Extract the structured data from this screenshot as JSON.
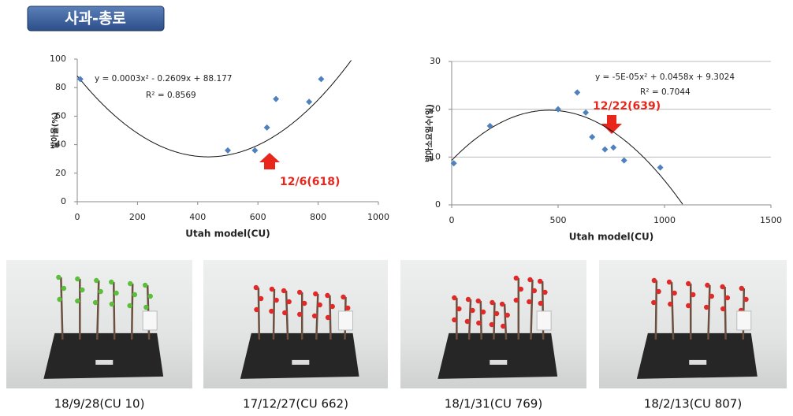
{
  "header": {
    "title": "사과-총로"
  },
  "chart_data": [
    {
      "type": "scatter",
      "x_label": "Utah model(CU)",
      "y_label": "발아율(%)",
      "x": [
        10,
        500,
        590,
        630,
        660,
        770,
        810
      ],
      "values": [
        86,
        36,
        36,
        52,
        72,
        70,
        86
      ],
      "color": "#4f81bd",
      "xlim": [
        0,
        1000
      ],
      "xticks": [
        0,
        200,
        400,
        600,
        800,
        1000
      ],
      "ylim": [
        0,
        100
      ],
      "yticks": [
        0,
        20,
        40,
        60,
        80,
        100
      ],
      "grid": false,
      "trend_equation": "y = 0.0003x² - 0.2609x + 88.177",
      "trend_coefficients": [
        0.0003,
        -0.2609,
        88.177
      ],
      "r_squared": "R² = 0.8569",
      "annotation": "12/6(618)"
    },
    {
      "type": "scatter",
      "x_label": "Utah model(CU)",
      "y_label": "발아소요일수(일)",
      "x": [
        10,
        180,
        500,
        590,
        630,
        660,
        720,
        760,
        810,
        980
      ],
      "values": [
        8.7,
        16.5,
        20,
        23.5,
        19.3,
        14.2,
        11.6,
        12,
        9.3,
        7.8
      ],
      "color": "#4f81bd",
      "xlim": [
        0,
        1500
      ],
      "xticks": [
        0,
        500,
        1000,
        1500
      ],
      "ylim": [
        0,
        30
      ],
      "yticks": [
        0,
        10,
        20,
        30
      ],
      "grid": true,
      "trend_equation": "y = -5E-05x² + 0.0458x + 9.3024",
      "trend_coefficients": [
        -5e-05,
        0.0458,
        9.3024
      ],
      "r_squared": "R² = 0.7044",
      "annotation": "12/22(639)"
    }
  ],
  "photos": [
    {
      "caption": "18/9/28(CU 10)"
    },
    {
      "caption": "17/12/27(CU 662)"
    },
    {
      "caption": "18/1/31(CU 769)"
    },
    {
      "caption": "18/2/13(CU 807)"
    }
  ]
}
